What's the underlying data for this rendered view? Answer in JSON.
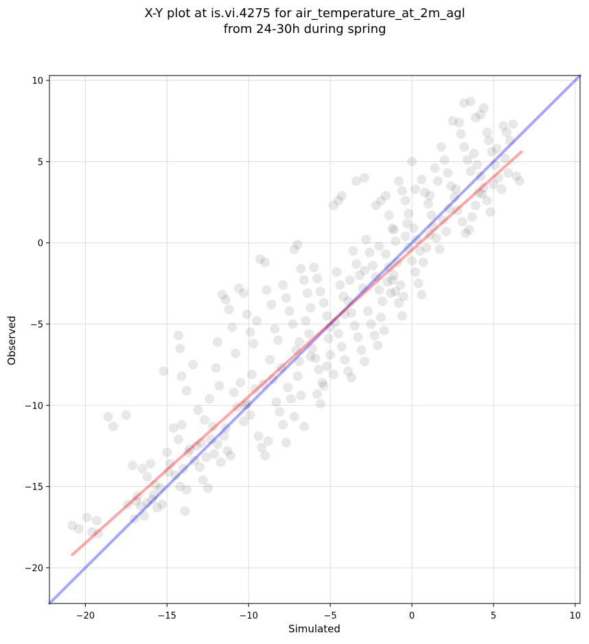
{
  "chart_data": {
    "type": "scatter",
    "title_line1": "X-Y plot at is.vi.4275 for air_temperature_at_2m_agl",
    "title_line2": "from 24-30h during spring",
    "xlabel": "Simulated",
    "ylabel": "Observed",
    "xlim": [
      -22.2,
      10.3
    ],
    "ylim": [
      -22.2,
      10.3
    ],
    "xticks": [
      -20,
      -15,
      -10,
      -5,
      0,
      5,
      10
    ],
    "yticks": [
      -20,
      -15,
      -10,
      -5,
      0,
      5,
      10
    ],
    "xtick_labels": [
      "−20",
      "−15",
      "−10",
      "−5",
      "0",
      "5",
      "10"
    ],
    "ytick_labels": [
      "−20",
      "−15",
      "−10",
      "−5",
      "0",
      "5",
      "10"
    ],
    "grid": true,
    "point_color": "#000000",
    "point_opacity": 0.09,
    "points": [
      [
        -20.8,
        -17.4
      ],
      [
        -20.4,
        -17.6
      ],
      [
        -19.9,
        -16.9
      ],
      [
        -19.6,
        -17.8
      ],
      [
        -19.3,
        -17.1
      ],
      [
        -19.2,
        -17.9
      ],
      [
        -18.6,
        -10.7
      ],
      [
        -18.3,
        -11.3
      ],
      [
        -17.5,
        -10.6
      ],
      [
        -17.4,
        -16.1
      ],
      [
        -17.0,
        -17.0
      ],
      [
        -16.9,
        -15.9
      ],
      [
        -16.6,
        -16.2
      ],
      [
        -16.4,
        -16.8
      ],
      [
        -16.2,
        -16.0
      ],
      [
        -15.9,
        -15.8
      ],
      [
        -15.6,
        -16.3
      ],
      [
        -15.3,
        -16.1
      ],
      [
        -17.1,
        -13.7
      ],
      [
        -16.5,
        -13.9
      ],
      [
        -16.2,
        -14.4
      ],
      [
        -15.8,
        -15.5
      ],
      [
        -16.0,
        -13.6
      ],
      [
        -15.4,
        -15.1
      ],
      [
        -15.0,
        -12.9
      ],
      [
        -14.8,
        -13.6
      ],
      [
        -14.5,
        -14.3
      ],
      [
        -14.2,
        -15.0
      ],
      [
        -14.0,
        -13.9
      ],
      [
        -13.8,
        -15.2
      ],
      [
        -14.6,
        -11.4
      ],
      [
        -14.3,
        -12.1
      ],
      [
        -14.1,
        -11.2
      ],
      [
        -13.9,
        -16.5
      ],
      [
        -13.6,
        -12.7
      ],
      [
        -13.3,
        -13.4
      ],
      [
        -15.2,
        -7.9
      ],
      [
        -14.3,
        -5.7
      ],
      [
        -14.2,
        -6.5
      ],
      [
        -14.1,
        -8.2
      ],
      [
        -13.8,
        -9.1
      ],
      [
        -13.4,
        -7.5
      ],
      [
        -13.2,
        -12.5
      ],
      [
        -13.0,
        -13.8
      ],
      [
        -12.8,
        -14.6
      ],
      [
        -12.6,
        -13.2
      ],
      [
        -12.5,
        -15.1
      ],
      [
        -12.3,
        -12.1
      ],
      [
        -13.1,
        -10.3
      ],
      [
        -12.7,
        -10.9
      ],
      [
        -12.4,
        -9.6
      ],
      [
        -12.2,
        -11.3
      ],
      [
        -12.0,
        -7.7
      ],
      [
        -11.8,
        -8.8
      ],
      [
        -12.1,
        -13.0
      ],
      [
        -11.9,
        -12.4
      ],
      [
        -11.7,
        -13.5
      ],
      [
        -11.5,
        -11.9
      ],
      [
        -11.3,
        -12.8
      ],
      [
        -11.1,
        -13.1
      ],
      [
        -11.9,
        -6.1
      ],
      [
        -11.6,
        -3.2
      ],
      [
        -11.4,
        -3.5
      ],
      [
        -11.2,
        -4.1
      ],
      [
        -11.0,
        -5.2
      ],
      [
        -10.8,
        -6.8
      ],
      [
        -10.9,
        -9.2
      ],
      [
        -10.7,
        -10.1
      ],
      [
        -10.5,
        -8.6
      ],
      [
        -10.3,
        -11.0
      ],
      [
        -10.1,
        -9.9
      ],
      [
        -9.9,
        -10.6
      ],
      [
        -10.6,
        -2.8
      ],
      [
        -10.3,
        -3.1
      ],
      [
        -10.1,
        -4.4
      ],
      [
        -9.9,
        -5.5
      ],
      [
        -9.7,
        -6.2
      ],
      [
        -9.5,
        -4.8
      ],
      [
        -9.8,
        -8.1
      ],
      [
        -9.6,
        -9.0
      ],
      [
        -9.4,
        -11.9
      ],
      [
        -9.2,
        -12.6
      ],
      [
        -9.0,
        -13.1
      ],
      [
        -8.8,
        -12.2
      ],
      [
        -9.3,
        -1.0
      ],
      [
        -9.0,
        -1.2
      ],
      [
        -8.9,
        -2.9
      ],
      [
        -8.6,
        -3.8
      ],
      [
        -8.4,
        -5.3
      ],
      [
        -8.2,
        -6.0
      ],
      [
        -8.7,
        -7.2
      ],
      [
        -8.5,
        -8.4
      ],
      [
        -8.3,
        -9.8
      ],
      [
        -8.1,
        -10.4
      ],
      [
        -7.9,
        -11.2
      ],
      [
        -7.7,
        -12.3
      ],
      [
        -7.9,
        -2.6
      ],
      [
        -7.7,
        -3.4
      ],
      [
        -7.5,
        -4.2
      ],
      [
        -7.3,
        -5.0
      ],
      [
        -7.1,
        -6.6
      ],
      [
        -6.9,
        -7.3
      ],
      [
        -7.0,
        -0.1
      ],
      [
        -7.2,
        -0.4
      ],
      [
        -6.8,
        -1.6
      ],
      [
        -6.6,
        -2.3
      ],
      [
        -6.4,
        -3.1
      ],
      [
        -6.2,
        -4.0
      ],
      [
        -7.6,
        -8.9
      ],
      [
        -7.4,
        -9.6
      ],
      [
        -7.2,
        -10.7
      ],
      [
        -7.0,
        -8.2
      ],
      [
        -6.8,
        -9.4
      ],
      [
        -6.6,
        -11.3
      ],
      [
        -6.5,
        -4.8
      ],
      [
        -6.3,
        -5.6
      ],
      [
        -6.1,
        -6.5
      ],
      [
        -5.9,
        -7.1
      ],
      [
        -5.7,
        -7.8
      ],
      [
        -5.5,
        -8.6
      ],
      [
        -6.0,
        -1.5
      ],
      [
        -5.8,
        -2.2
      ],
      [
        -5.6,
        -3.0
      ],
      [
        -5.4,
        -3.7
      ],
      [
        -5.2,
        -4.5
      ],
      [
        -5.0,
        -5.2
      ],
      [
        -5.8,
        -9.3
      ],
      [
        -5.6,
        -9.9
      ],
      [
        -5.4,
        -8.8
      ],
      [
        -5.2,
        -7.6
      ],
      [
        -5.0,
        -6.9
      ],
      [
        -4.8,
        -8.1
      ],
      [
        -4.8,
        2.3
      ],
      [
        -4.5,
        2.6
      ],
      [
        -4.3,
        2.9
      ],
      [
        -4.6,
        -1.8
      ],
      [
        -4.4,
        -2.6
      ],
      [
        -4.2,
        -3.3
      ],
      [
        -4.7,
        -4.9
      ],
      [
        -4.5,
        -5.6
      ],
      [
        -4.3,
        -6.4
      ],
      [
        -4.1,
        -7.2
      ],
      [
        -3.9,
        -7.9
      ],
      [
        -3.7,
        -8.3
      ],
      [
        -3.4,
        3.8
      ],
      [
        -2.9,
        4.0
      ],
      [
        -3.6,
        -0.5
      ],
      [
        -3.4,
        -1.3
      ],
      [
        -3.2,
        -2.0
      ],
      [
        -3.0,
        -2.8
      ],
      [
        -3.9,
        -3.6
      ],
      [
        -3.7,
        -4.3
      ],
      [
        -3.5,
        -5.1
      ],
      [
        -3.3,
        -5.8
      ],
      [
        -3.1,
        -6.6
      ],
      [
        -2.9,
        -7.3
      ],
      [
        -2.8,
        0.2
      ],
      [
        -2.6,
        -0.6
      ],
      [
        -2.4,
        -1.4
      ],
      [
        -2.2,
        -2.1
      ],
      [
        -2.0,
        -2.9
      ],
      [
        -1.8,
        -3.6
      ],
      [
        -2.7,
        -4.2
      ],
      [
        -2.5,
        -5.0
      ],
      [
        -2.3,
        -5.7
      ],
      [
        -2.1,
        -6.3
      ],
      [
        -1.9,
        -4.6
      ],
      [
        -1.7,
        -5.4
      ],
      [
        -2.2,
        2.3
      ],
      [
        -1.9,
        2.6
      ],
      [
        -1.6,
        2.9
      ],
      [
        -1.4,
        1.7
      ],
      [
        -1.2,
        0.9
      ],
      [
        -1.0,
        0.1
      ],
      [
        -1.6,
        -0.7
      ],
      [
        -1.4,
        -1.5
      ],
      [
        -1.2,
        -2.3
      ],
      [
        -1.0,
        -3.0
      ],
      [
        -0.8,
        -3.7
      ],
      [
        -0.6,
        -4.5
      ],
      [
        -1.5,
        -2.4
      ],
      [
        -1.3,
        -3.1
      ],
      [
        -1.1,
        -2.0
      ],
      [
        -0.9,
        -1.2
      ],
      [
        -0.7,
        -2.6
      ],
      [
        -0.5,
        -3.3
      ],
      [
        -0.8,
        3.8
      ],
      [
        -0.6,
        3.2
      ],
      [
        -0.4,
        2.6
      ],
      [
        -0.2,
        1.8
      ],
      [
        0.0,
        5.0
      ],
      [
        0.2,
        3.3
      ],
      [
        -0.4,
        0.4
      ],
      [
        -0.2,
        -0.3
      ],
      [
        0.0,
        -1.1
      ],
      [
        0.2,
        -1.8
      ],
      [
        0.4,
        -2.5
      ],
      [
        0.6,
        -3.2
      ],
      [
        0.1,
        0.9
      ],
      [
        0.3,
        0.2
      ],
      [
        0.5,
        -0.5
      ],
      [
        0.7,
        -1.2
      ],
      [
        0.9,
        -0.3
      ],
      [
        1.1,
        0.5
      ],
      [
        0.6,
        3.9
      ],
      [
        0.8,
        3.1
      ],
      [
        1.0,
        2.4
      ],
      [
        1.2,
        1.7
      ],
      [
        1.4,
        4.6
      ],
      [
        1.6,
        3.8
      ],
      [
        1.3,
        1.0
      ],
      [
        1.5,
        0.3
      ],
      [
        1.7,
        -0.4
      ],
      [
        1.9,
        1.4
      ],
      [
        2.1,
        0.7
      ],
      [
        2.3,
        2.1
      ],
      [
        1.8,
        5.9
      ],
      [
        2.0,
        5.1
      ],
      [
        2.2,
        4.3
      ],
      [
        2.4,
        3.5
      ],
      [
        2.6,
        2.8
      ],
      [
        2.8,
        2.0
      ],
      [
        2.5,
        7.5
      ],
      [
        2.9,
        7.4
      ],
      [
        3.0,
        6.7
      ],
      [
        3.2,
        5.9
      ],
      [
        3.4,
        5.1
      ],
      [
        3.6,
        4.4
      ],
      [
        3.1,
        1.3
      ],
      [
        3.3,
        0.6
      ],
      [
        3.5,
        0.8
      ],
      [
        3.7,
        1.6
      ],
      [
        3.9,
        2.3
      ],
      [
        4.1,
        3.1
      ],
      [
        3.2,
        8.6
      ],
      [
        3.6,
        8.7
      ],
      [
        3.9,
        7.7
      ],
      [
        4.2,
        7.9
      ],
      [
        4.4,
        8.3
      ],
      [
        4.6,
        6.8
      ],
      [
        4.0,
        4.8
      ],
      [
        4.2,
        4.1
      ],
      [
        4.4,
        3.4
      ],
      [
        4.6,
        2.6
      ],
      [
        4.8,
        1.9
      ],
      [
        5.0,
        3.6
      ],
      [
        4.7,
        6.3
      ],
      [
        4.9,
        5.6
      ],
      [
        5.1,
        4.8
      ],
      [
        5.3,
        4.0
      ],
      [
        5.5,
        3.3
      ],
      [
        5.7,
        5.2
      ],
      [
        5.6,
        7.2
      ],
      [
        5.8,
        6.8
      ],
      [
        6.0,
        6.3
      ],
      [
        6.2,
        7.3
      ],
      [
        5.9,
        4.3
      ],
      [
        6.4,
        4.1
      ],
      [
        6.6,
        3.8
      ],
      [
        4.3,
        3.0
      ],
      [
        5.2,
        5.8
      ],
      [
        3.8,
        5.5
      ],
      [
        2.7,
        3.3
      ],
      [
        1.1,
        2.9
      ],
      [
        -0.3,
        1.2
      ],
      [
        -1.1,
        0.8
      ],
      [
        -2.0,
        -0.2
      ],
      [
        -2.9,
        -1.7
      ],
      [
        -3.8,
        -2.3
      ],
      [
        -4.1,
        -4.4
      ],
      [
        -5.1,
        -5.9
      ],
      [
        -6.2,
        -7.0
      ],
      [
        -6.9,
        -6.1
      ],
      [
        -8.0,
        -7.7
      ],
      [
        -9.1,
        -8.7
      ],
      [
        -10.2,
        -10.0
      ],
      [
        -11.4,
        -11.4
      ],
      [
        -12.9,
        -12.3
      ],
      [
        -13.7,
        -12.9
      ],
      [
        -14.9,
        -14.1
      ],
      [
        -15.7,
        -14.9
      ],
      [
        -16.8,
        -15.6
      ]
    ],
    "lines": [
      {
        "color": "#0000ff",
        "opacity": 0.35,
        "points": [
          [
            -22.2,
            -22.2
          ],
          [
            10.3,
            10.3
          ]
        ]
      },
      {
        "color": "#ff0000",
        "opacity": 0.35,
        "points": [
          [
            -20.8,
            -19.2
          ],
          [
            6.7,
            5.6
          ]
        ]
      }
    ]
  }
}
